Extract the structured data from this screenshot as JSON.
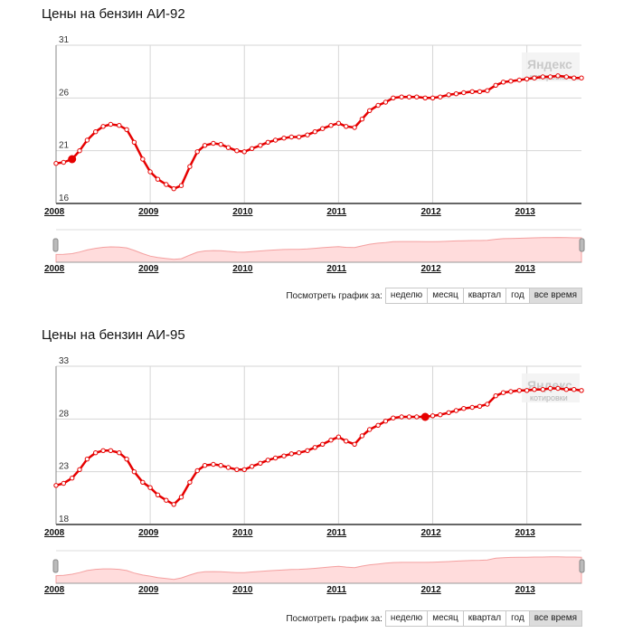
{
  "colors": {
    "line": "#e60000",
    "fill": "#ffdcdc",
    "grid": "#d6d6d6",
    "active_button": "#dcdcdc"
  },
  "period_label": "Посмотреть график за:",
  "periods": [
    "неделю",
    "месяц",
    "квартал",
    "год",
    "все время"
  ],
  "active_period": "все время",
  "watermark": {
    "brand": "Яндекс",
    "sub": "котировки"
  },
  "chart_data": [
    {
      "type": "line",
      "title": "Цены на бензин АИ-92",
      "y_ticks": [
        "31",
        "26",
        "21",
        "16"
      ],
      "ylim": [
        16,
        31
      ],
      "x_ticks": [
        "2008",
        "2009",
        "2010",
        "2011",
        "2012",
        "2013"
      ],
      "xlim": [
        2008.0,
        2013.58
      ],
      "highlight_index": 2,
      "x": [
        2008.0,
        2008.08,
        2008.17,
        2008.25,
        2008.33,
        2008.42,
        2008.5,
        2008.58,
        2008.67,
        2008.75,
        2008.83,
        2008.92,
        2009.0,
        2009.08,
        2009.17,
        2009.25,
        2009.33,
        2009.42,
        2009.5,
        2009.58,
        2009.67,
        2009.75,
        2009.83,
        2009.92,
        2010.0,
        2010.08,
        2010.17,
        2010.25,
        2010.33,
        2010.42,
        2010.5,
        2010.58,
        2010.67,
        2010.75,
        2010.83,
        2010.92,
        2011.0,
        2011.08,
        2011.17,
        2011.25,
        2011.33,
        2011.42,
        2011.5,
        2011.58,
        2011.67,
        2011.75,
        2011.83,
        2011.92,
        2012.0,
        2012.08,
        2012.17,
        2012.25,
        2012.33,
        2012.42,
        2012.5,
        2012.58,
        2012.67,
        2012.75,
        2012.83,
        2012.92,
        2013.0,
        2013.08,
        2013.17,
        2013.25,
        2013.33,
        2013.42,
        2013.5,
        2013.58
      ],
      "values": [
        19.8,
        19.9,
        20.2,
        21.0,
        22.0,
        22.8,
        23.3,
        23.5,
        23.4,
        23.0,
        21.8,
        20.2,
        19.0,
        18.3,
        17.8,
        17.4,
        17.7,
        19.5,
        20.9,
        21.5,
        21.7,
        21.6,
        21.3,
        21.0,
        20.9,
        21.2,
        21.5,
        21.8,
        22.0,
        22.2,
        22.3,
        22.3,
        22.5,
        22.8,
        23.1,
        23.4,
        23.6,
        23.3,
        23.2,
        24.0,
        24.8,
        25.3,
        25.6,
        26.0,
        26.1,
        26.1,
        26.1,
        26.0,
        26.0,
        26.1,
        26.3,
        26.4,
        26.5,
        26.6,
        26.6,
        26.7,
        27.2,
        27.5,
        27.6,
        27.7,
        27.8,
        27.9,
        28.0,
        28.0,
        28.1,
        28.0,
        27.9,
        27.9
      ]
    },
    {
      "type": "line",
      "title": "Цены на бензин АИ-95",
      "y_ticks": [
        "33",
        "28",
        "23",
        "18"
      ],
      "ylim": [
        18,
        33
      ],
      "x_ticks": [
        "2008",
        "2009",
        "2010",
        "2011",
        "2012",
        "2013"
      ],
      "xlim": [
        2008.0,
        2013.58
      ],
      "highlight_index": 47,
      "x": [
        2008.0,
        2008.08,
        2008.17,
        2008.25,
        2008.33,
        2008.42,
        2008.5,
        2008.58,
        2008.67,
        2008.75,
        2008.83,
        2008.92,
        2009.0,
        2009.08,
        2009.17,
        2009.25,
        2009.33,
        2009.42,
        2009.5,
        2009.58,
        2009.67,
        2009.75,
        2009.83,
        2009.92,
        2010.0,
        2010.08,
        2010.17,
        2010.25,
        2010.33,
        2010.42,
        2010.5,
        2010.58,
        2010.67,
        2010.75,
        2010.83,
        2010.92,
        2011.0,
        2011.08,
        2011.17,
        2011.25,
        2011.33,
        2011.42,
        2011.5,
        2011.58,
        2011.67,
        2011.75,
        2011.83,
        2011.92,
        2012.0,
        2012.08,
        2012.17,
        2012.25,
        2012.33,
        2012.42,
        2012.5,
        2012.58,
        2012.67,
        2012.75,
        2012.83,
        2012.92,
        2013.0,
        2013.08,
        2013.17,
        2013.25,
        2013.33,
        2013.42,
        2013.5,
        2013.58
      ],
      "values": [
        21.7,
        21.9,
        22.4,
        23.2,
        24.2,
        24.8,
        25.0,
        25.0,
        24.8,
        24.2,
        23.0,
        22.0,
        21.5,
        20.8,
        20.3,
        19.9,
        20.6,
        22.0,
        23.1,
        23.6,
        23.7,
        23.6,
        23.4,
        23.2,
        23.2,
        23.5,
        23.8,
        24.1,
        24.3,
        24.5,
        24.7,
        24.8,
        25.0,
        25.3,
        25.6,
        26.0,
        26.3,
        25.9,
        25.6,
        26.4,
        27.0,
        27.4,
        27.8,
        28.1,
        28.2,
        28.2,
        28.2,
        28.2,
        28.3,
        28.4,
        28.6,
        28.8,
        29.0,
        29.1,
        29.2,
        29.4,
        30.2,
        30.5,
        30.6,
        30.7,
        30.7,
        30.8,
        30.8,
        30.9,
        30.9,
        30.8,
        30.8,
        30.7
      ]
    }
  ]
}
